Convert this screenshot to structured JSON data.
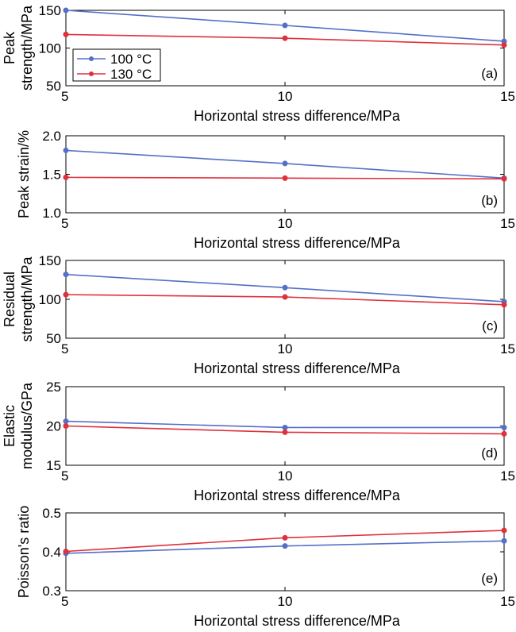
{
  "figure": {
    "series_colors": {
      "100 °C": "#5470c6",
      "130 °C": "#e0303c"
    }
  },
  "chart_data": [
    {
      "type": "line",
      "panel": "(a)",
      "x": [
        5,
        10,
        15
      ],
      "xlabel": "Horizontal stress difference/MPa",
      "ylabel": [
        "Peak",
        "strength/MPa"
      ],
      "xlim": [
        5,
        15
      ],
      "ylim": [
        50,
        150
      ],
      "xticks": [
        "5",
        "10",
        "15"
      ],
      "yticks": [
        "50",
        "100",
        "150"
      ],
      "yticks_values": [
        50,
        100,
        150
      ],
      "grid": false,
      "legend": {
        "placement": "bottom-left",
        "entries": [
          "100 °C",
          "130 °C"
        ]
      },
      "series": [
        {
          "name": "100 °C",
          "color": "#5470c6",
          "values": [
            150,
            130,
            109
          ]
        },
        {
          "name": "130 °C",
          "color": "#e0303c",
          "values": [
            118,
            113,
            104
          ]
        }
      ]
    },
    {
      "type": "line",
      "panel": "(b)",
      "x": [
        5,
        10,
        15
      ],
      "xlabel": "Horizontal stress difference/MPa",
      "ylabel": [
        "Peak strain/%"
      ],
      "xlim": [
        5,
        15
      ],
      "ylim": [
        1.0,
        2.0
      ],
      "xticks": [
        "5",
        "10",
        "15"
      ],
      "yticks": [
        "1.0",
        "1.5",
        "2.0"
      ],
      "yticks_values": [
        1.0,
        1.5,
        2.0
      ],
      "grid": false,
      "series": [
        {
          "name": "100 °C",
          "color": "#5470c6",
          "values": [
            1.81,
            1.64,
            1.45
          ]
        },
        {
          "name": "130 °C",
          "color": "#e0303c",
          "values": [
            1.46,
            1.45,
            1.44
          ]
        }
      ]
    },
    {
      "type": "line",
      "panel": "(c)",
      "x": [
        5,
        10,
        15
      ],
      "xlabel": "Horizontal stress difference/MPa",
      "ylabel": [
        "Residual",
        "strength/MPa"
      ],
      "xlim": [
        5,
        15
      ],
      "ylim": [
        50,
        150
      ],
      "xticks": [
        "5",
        "10",
        "15"
      ],
      "yticks": [
        "50",
        "100",
        "150"
      ],
      "yticks_values": [
        50,
        100,
        150
      ],
      "grid": false,
      "series": [
        {
          "name": "100 °C",
          "color": "#5470c6",
          "values": [
            132,
            115,
            97
          ]
        },
        {
          "name": "130 °C",
          "color": "#e0303c",
          "values": [
            106,
            103,
            93
          ]
        }
      ]
    },
    {
      "type": "line",
      "panel": "(d)",
      "x": [
        5,
        10,
        15
      ],
      "xlabel": "Horizontal stress difference/MPa",
      "ylabel": [
        "Elastic",
        "modulus/GPa"
      ],
      "xlim": [
        5,
        15
      ],
      "ylim": [
        15,
        25
      ],
      "xticks": [
        "5",
        "10",
        "15"
      ],
      "yticks": [
        "15",
        "20",
        "25"
      ],
      "yticks_values": [
        15,
        20,
        25
      ],
      "grid": false,
      "series": [
        {
          "name": "100 °C",
          "color": "#5470c6",
          "values": [
            20.6,
            19.8,
            19.8
          ]
        },
        {
          "name": "130 °C",
          "color": "#e0303c",
          "values": [
            20.0,
            19.2,
            19.0
          ]
        }
      ]
    },
    {
      "type": "line",
      "panel": "(e)",
      "x": [
        5,
        10,
        15
      ],
      "xlabel": "Horizontal stress difference/MPa",
      "ylabel": [
        "Poisson's ratio"
      ],
      "xlim": [
        5,
        15
      ],
      "ylim": [
        0.3,
        0.5
      ],
      "xticks": [
        "5",
        "10",
        "15"
      ],
      "yticks": [
        "0.3",
        "0.4",
        "0.5"
      ],
      "yticks_values": [
        0.3,
        0.4,
        0.5
      ],
      "grid": false,
      "series": [
        {
          "name": "100 °C",
          "color": "#5470c6",
          "values": [
            0.396,
            0.415,
            0.428
          ]
        },
        {
          "name": "130 °C",
          "color": "#e0303c",
          "values": [
            0.401,
            0.436,
            0.455
          ]
        }
      ]
    }
  ]
}
